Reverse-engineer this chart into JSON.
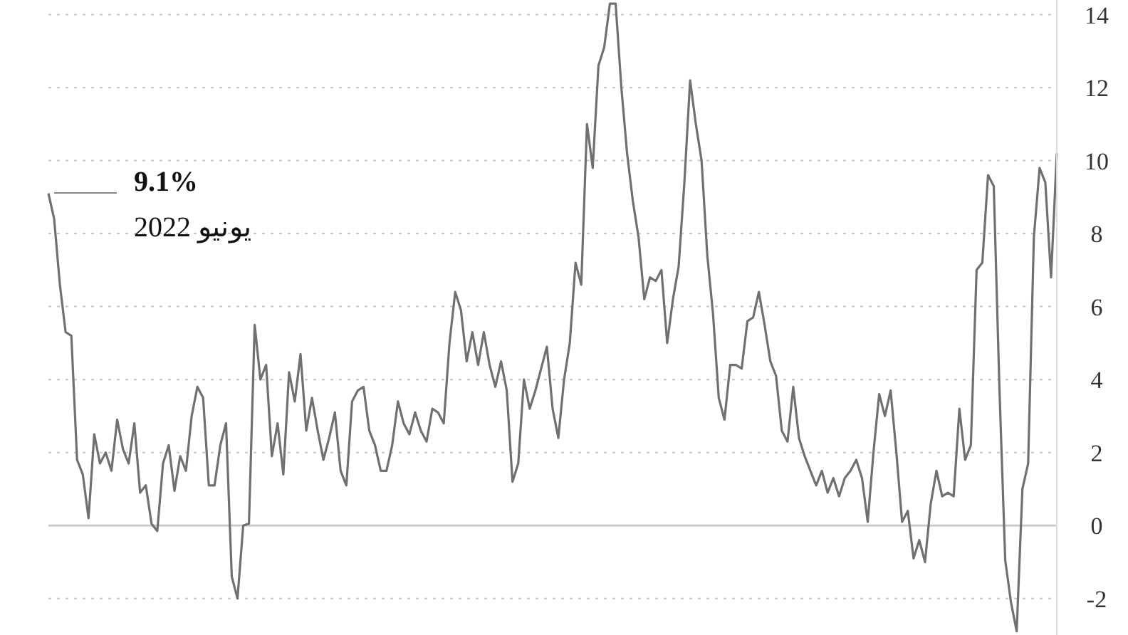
{
  "chart_data": {
    "type": "line",
    "categories": [
      null,
      null,
      null,
      null,
      null,
      null,
      null,
      null,
      null,
      null,
      null,
      null,
      null,
      null,
      null,
      null,
      null,
      null,
      null,
      null,
      null,
      null,
      null,
      null,
      null,
      null,
      null,
      null,
      null,
      null,
      null,
      null,
      null,
      null,
      null,
      null,
      null,
      null,
      null,
      null,
      null,
      null,
      null,
      null,
      null,
      null,
      null,
      null,
      null,
      null,
      null,
      null,
      null,
      null,
      null,
      null,
      null,
      null,
      null,
      null,
      null,
      null,
      null,
      null,
      null,
      null,
      null,
      null,
      null,
      null,
      null,
      null,
      null,
      null,
      null,
      null,
      null,
      null,
      null,
      null,
      null,
      null,
      null,
      null,
      null,
      null,
      null,
      null,
      null,
      null,
      null,
      null,
      null,
      null,
      null,
      null,
      null,
      null,
      null,
      null,
      null,
      null,
      null,
      null,
      null,
      null,
      null,
      null,
      null,
      null,
      null,
      null,
      null,
      null,
      null,
      null,
      null,
      null,
      null,
      null,
      null,
      null,
      null,
      null,
      null,
      null,
      null,
      null,
      null,
      null,
      null,
      null,
      null,
      null,
      null,
      null,
      null,
      null,
      null,
      null,
      null,
      null,
      null,
      null,
      null,
      null,
      null,
      null,
      null,
      null,
      null,
      null,
      null,
      null,
      null,
      null,
      null,
      null,
      null,
      null,
      null,
      null,
      null,
      null,
      null,
      null,
      null,
      null,
      null,
      null,
      null,
      null,
      null,
      null,
      null,
      null,
      null
    ],
    "series": [
      {
        "color": "#707070",
        "values": [
          9.1,
          8.4,
          6.6,
          5.3,
          5.2,
          1.8,
          1.4,
          0.2,
          2.5,
          1.7,
          2.0,
          1.5,
          2.9,
          2.1,
          1.7,
          2.8,
          0.9,
          1.1,
          0.05,
          -0.15,
          1.7,
          2.2,
          0.95,
          1.9,
          1.5,
          3.0,
          3.8,
          3.5,
          1.1,
          1.1,
          2.2,
          2.8,
          -1.4,
          -2.0,
          0.0,
          0.05,
          5.5,
          4.0,
          4.4,
          1.9,
          2.8,
          1.4,
          4.2,
          3.4,
          4.7,
          2.6,
          3.5,
          2.6,
          1.8,
          2.4,
          3.1,
          1.5,
          1.1,
          3.4,
          3.7,
          3.8,
          2.6,
          2.2,
          1.5,
          1.5,
          2.2,
          3.4,
          2.8,
          2.5,
          3.1,
          2.6,
          2.3,
          3.2,
          3.1,
          2.8,
          5.0,
          6.4,
          5.9,
          4.5,
          5.3,
          4.4,
          5.3,
          4.4,
          3.8,
          4.5,
          3.7,
          1.2,
          1.7,
          4.0,
          3.2,
          3.7,
          4.3,
          4.9,
          3.2,
          2.4,
          4.0,
          5.0,
          7.2,
          6.6,
          11.0,
          9.8,
          12.6,
          13.1,
          14.3,
          14.3,
          12.0,
          10.2,
          8.9,
          7.9,
          6.2,
          6.8,
          6.7,
          7.0,
          5.0,
          6.2,
          7.1,
          9.4,
          12.2,
          11.0,
          10.0,
          7.4,
          5.8,
          3.5,
          2.9,
          4.4,
          4.4,
          4.3,
          5.6,
          5.7,
          6.4,
          5.5,
          4.5,
          4.1,
          2.6,
          2.3,
          3.8,
          2.4,
          1.9,
          1.5,
          1.1,
          1.5,
          0.9,
          1.3,
          0.8,
          1.3,
          1.5,
          1.8,
          1.3,
          0.1,
          2.0,
          3.6,
          3.0,
          3.7,
          2.0,
          0.1,
          0.4,
          -0.9,
          -0.4,
          -1.0,
          0.6,
          1.5,
          0.8,
          0.9,
          0.8,
          3.2,
          1.8,
          2.2,
          7.0,
          7.2,
          9.6,
          9.3,
          3.7,
          -0.95,
          -2.1,
          -2.9,
          1.0,
          1.7,
          7.9,
          9.8,
          9.4,
          6.8,
          10.2
        ]
      }
    ],
    "ylim": [
      -3,
      14.4
    ],
    "yticks": [
      -2,
      0,
      2,
      4,
      6,
      8,
      10,
      12,
      14
    ],
    "grid": "y",
    "tick_labels": "y",
    "ref_lines": [
      {
        "axis": "y",
        "value": 0,
        "color": "#cccccc"
      }
    ],
    "annotations": [
      "9.1%",
      "يونيو 2022"
    ]
  }
}
